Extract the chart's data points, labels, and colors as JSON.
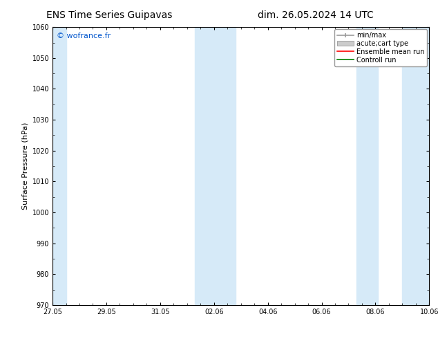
{
  "title_left": "ENS Time Series Guipavas",
  "title_right": "dim. 26.05.2024 14 UTC",
  "ylabel": "Surface Pressure (hPa)",
  "ylim": [
    970,
    1060
  ],
  "yticks": [
    970,
    980,
    990,
    1000,
    1010,
    1020,
    1030,
    1040,
    1050,
    1060
  ],
  "xtick_labels": [
    "27.05",
    "29.05",
    "31.05",
    "02.06",
    "04.06",
    "06.06",
    "08.06",
    "10.06"
  ],
  "xtick_positions": [
    0,
    2,
    4,
    6,
    8,
    10,
    12,
    14
  ],
  "x_min": 0,
  "x_max": 14,
  "watermark": "© wofrance.fr",
  "watermark_color": "#0055cc",
  "bg_color": "#ffffff",
  "plot_bg_color": "#ffffff",
  "shaded_color": "#d6eaf8",
  "shaded_regions": [
    {
      "x_start": -0.1,
      "x_end": 0.5
    },
    {
      "x_start": 5.3,
      "x_end": 6.8
    },
    {
      "x_start": 11.3,
      "x_end": 12.1
    },
    {
      "x_start": 13.0,
      "x_end": 14.1
    }
  ],
  "legend_entries": [
    {
      "label": "min/max",
      "color": "#999999",
      "style": "line_with_caps"
    },
    {
      "label": "acute;cart type",
      "color": "#cccccc",
      "style": "filled_rect"
    },
    {
      "label": "Ensemble mean run",
      "color": "#ff0000",
      "style": "line"
    },
    {
      "label": "Controll run",
      "color": "#008000",
      "style": "line"
    }
  ],
  "title_fontsize": 10,
  "ylabel_fontsize": 8,
  "tick_fontsize": 7,
  "legend_fontsize": 7,
  "watermark_fontsize": 8
}
